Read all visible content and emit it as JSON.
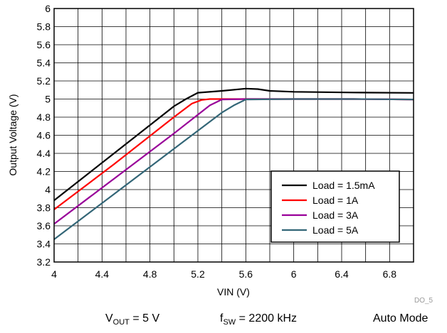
{
  "chart_data": {
    "type": "line",
    "xlabel": "VIN (V)",
    "ylabel": "Output Voltage (V)",
    "xlim": [
      4,
      7
    ],
    "ylim": [
      3.2,
      6
    ],
    "x_ticks": [
      4,
      4.4,
      4.8,
      5.2,
      5.6,
      6,
      6.4,
      6.8
    ],
    "y_ticks": [
      3.2,
      3.4,
      3.6,
      3.8,
      4,
      4.2,
      4.4,
      4.6,
      4.8,
      5,
      5.2,
      5.4,
      5.6,
      5.8,
      6
    ],
    "x_tick_labels": [
      "4",
      "4.4",
      "4.8",
      "5.2",
      "5.6",
      "6",
      "6.4",
      "6.8"
    ],
    "y_tick_labels": [
      "3.2",
      "3.4",
      "3.6",
      "3.8",
      "4",
      "4.2",
      "4.4",
      "4.6",
      "4.8",
      "5",
      "5.2",
      "5.4",
      "5.6",
      "5.8",
      "6"
    ],
    "grid": true,
    "legend_position": "bottom-right",
    "series": [
      {
        "name": "Load = 1.5mA",
        "color": "#000000",
        "x": [
          4.0,
          4.5,
          5.0,
          5.1,
          5.2,
          5.4,
          5.6,
          5.7,
          5.8,
          6.0,
          6.5,
          7.0
        ],
        "y": [
          3.88,
          4.4,
          4.92,
          5.0,
          5.07,
          5.09,
          5.115,
          5.11,
          5.09,
          5.08,
          5.072,
          5.068
        ]
      },
      {
        "name": "Load = 1A",
        "color": "#ff0000",
        "x": [
          4.0,
          4.5,
          5.0,
          5.15,
          5.23,
          5.3,
          5.6,
          6.0,
          6.5,
          7.0
        ],
        "y": [
          3.78,
          4.28,
          4.8,
          4.95,
          4.99,
          5.0,
          5.0,
          5.0,
          5.0,
          4.995
        ]
      },
      {
        "name": "Load = 3A",
        "color": "#990099",
        "x": [
          4.0,
          4.5,
          5.0,
          5.3,
          5.4,
          5.6,
          6.0,
          6.5,
          7.0
        ],
        "y": [
          3.62,
          4.12,
          4.62,
          4.93,
          4.995,
          5.0,
          5.0,
          5.0,
          4.995
        ]
      },
      {
        "name": "Load = 5A",
        "color": "#336677",
        "x": [
          4.0,
          4.5,
          5.0,
          5.4,
          5.5,
          5.6,
          6.0,
          6.5,
          7.0
        ],
        "y": [
          3.45,
          3.95,
          4.45,
          4.85,
          4.93,
          4.995,
          5.0,
          5.0,
          4.995
        ]
      }
    ]
  },
  "figure_id": "DO_5",
  "conditions": {
    "vout_symbol": "V",
    "vout_subscript": "OUT",
    "vout_value": " = 5 V",
    "fsw_symbol": "f",
    "fsw_subscript": "SW",
    "fsw_value": " = 2200 kHz",
    "mode": "Auto Mode"
  }
}
